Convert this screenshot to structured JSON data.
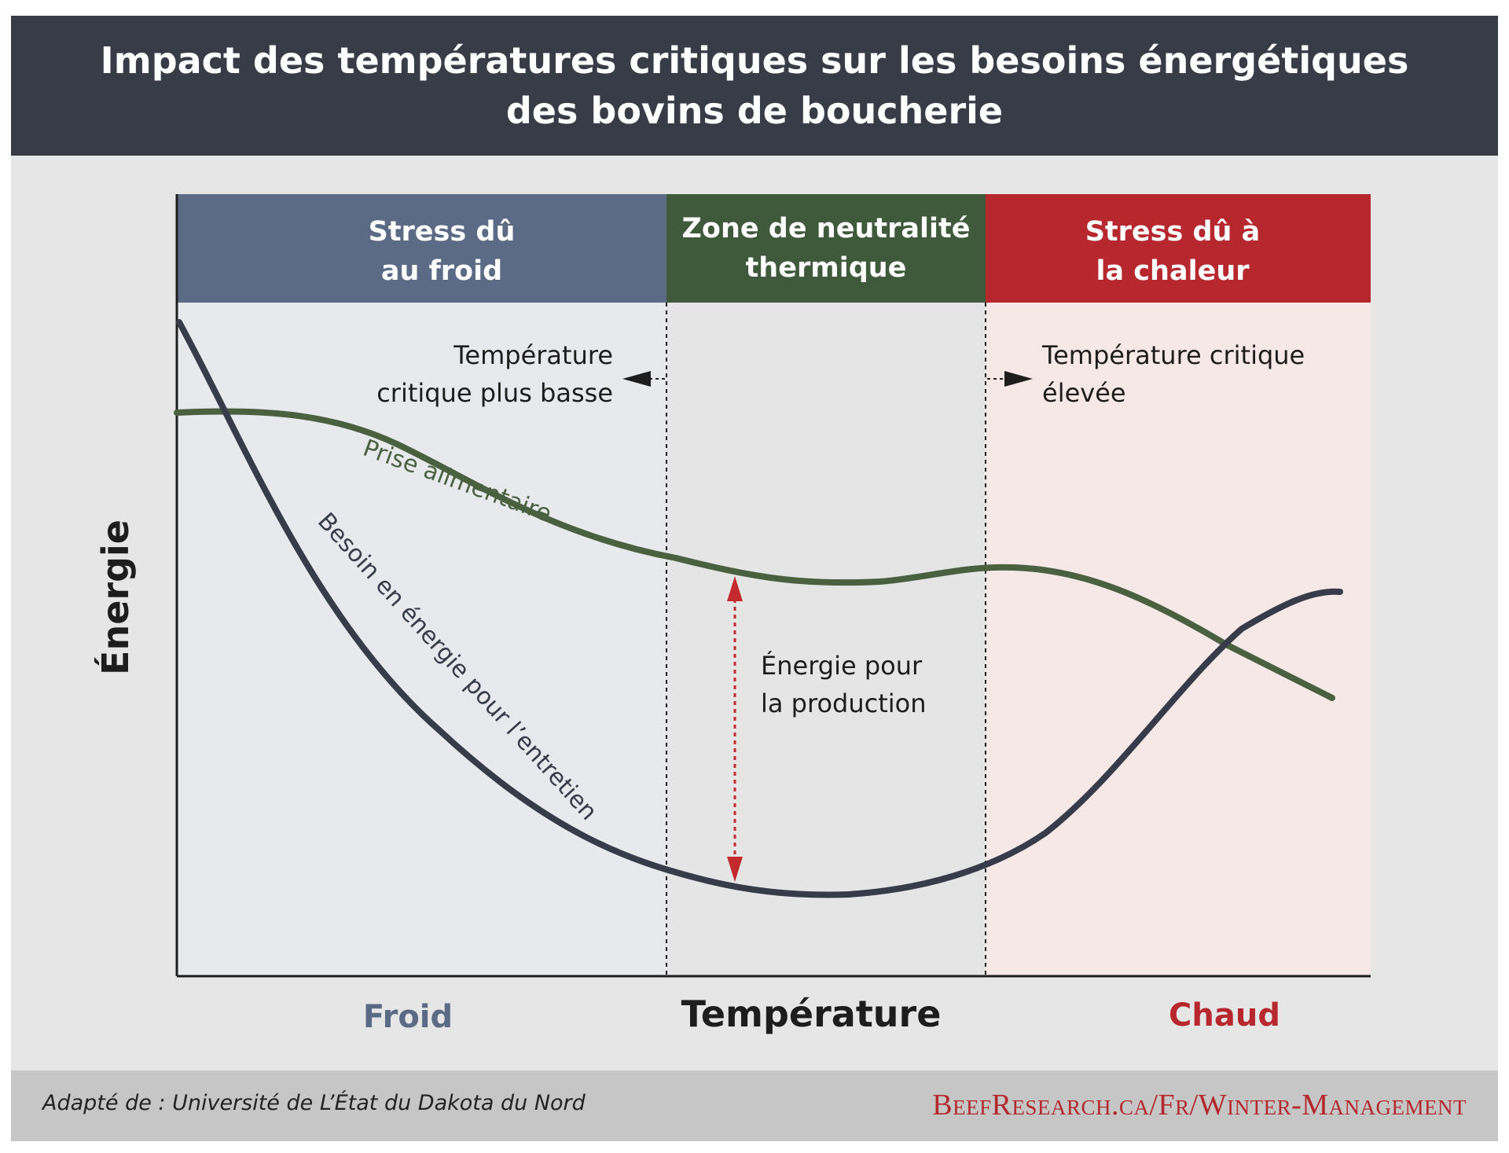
{
  "title_line1": "Impact des températures critiques sur les besoins énergétiques",
  "title_line2": "des bovins de boucherie",
  "zones": {
    "cold": {
      "line1": "Stress dû",
      "line2": "au froid",
      "color": "#5b6b85",
      "bg": "#e8e9ed"
    },
    "neutral": {
      "line1": "Zone de neutralité",
      "line2": "thermique",
      "color": "#3e5a3a",
      "bg": "#e5e5e5"
    },
    "hot": {
      "line1": "Stress dû à",
      "line2": "la chaleur",
      "color": "#b7282e",
      "bg": "#f5e8e7"
    }
  },
  "annotations": {
    "lower_critical_line1": "Température",
    "lower_critical_line2": "critique plus basse",
    "upper_critical_line1": "Température critique",
    "upper_critical_line2": "élevée",
    "production_line1": "Énergie pour",
    "production_line2": "la production"
  },
  "curves": {
    "intake": {
      "label": "Prise alimentaire",
      "color": "#4a6140"
    },
    "maintenance": {
      "label": "Besoin en énergie pour l’entretien",
      "color": "#373c4a"
    }
  },
  "axes": {
    "y_title": "Énergie",
    "x_title": "Température",
    "x_low": "Froid",
    "x_high": "Chaud",
    "x_low_color": "#5b6b85",
    "x_high_color": "#b7282e"
  },
  "footer": {
    "source": "Adapté de : Université de L’État du Dakota du Nord",
    "url": "BeefResearch.ca/Fr/Winter-Management"
  }
}
